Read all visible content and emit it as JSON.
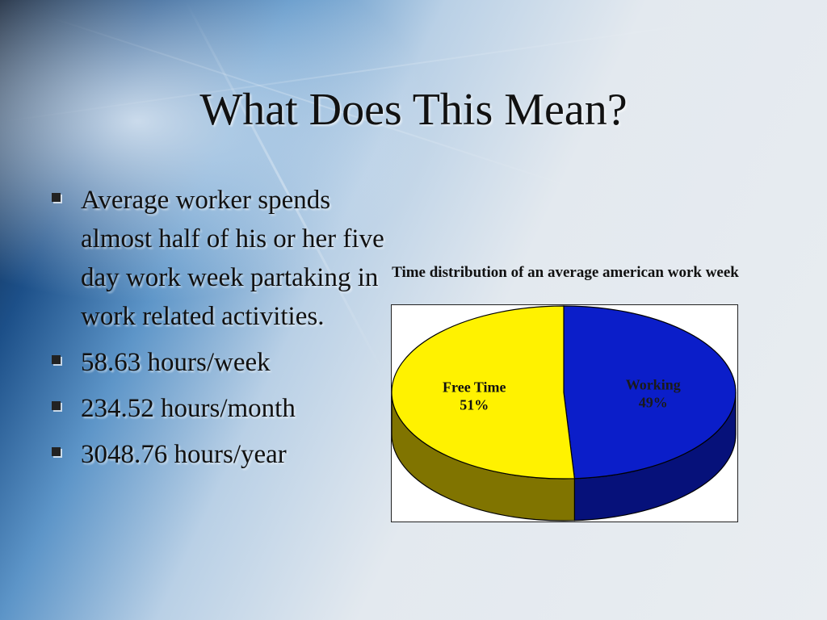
{
  "slide": {
    "title": "What Does This Mean?",
    "bullets": [
      "Average worker spends almost half of his or her five day work week partaking in work related activities.",
      "58.63 hours/week",
      "234.52 hours/month",
      "3048.76 hours/year"
    ]
  },
  "chart_data": {
    "type": "pie",
    "title": "Time distribution of an average american work week",
    "labels": [
      "Working",
      "Free Time"
    ],
    "values": [
      49,
      51
    ],
    "value_labels": [
      "49%",
      "51%"
    ],
    "colors": {
      "Working": {
        "top": "#0b1ec9",
        "side": "#06117a"
      },
      "Free Time": {
        "top": "#fff200",
        "side": "#807400"
      }
    },
    "style": "3d"
  }
}
